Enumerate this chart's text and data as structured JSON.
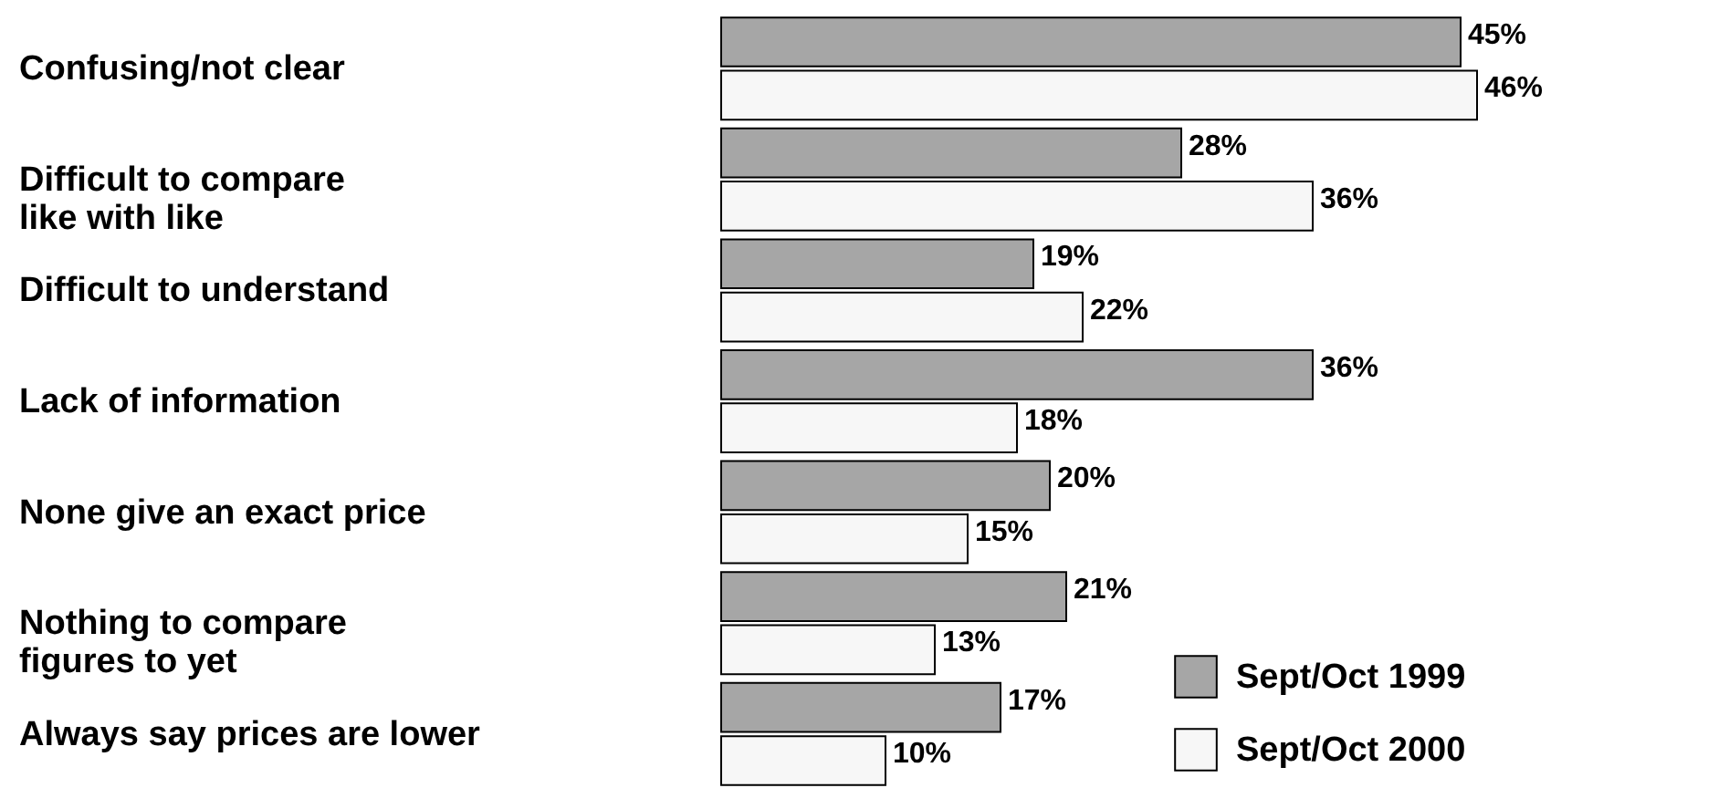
{
  "chart_data": {
    "type": "bar",
    "orientation": "horizontal",
    "categories": [
      "Confusing/not clear",
      "Difficult to compare\nlike with like",
      "Difficult to understand",
      "Lack of information",
      "None give an exact price",
      "Nothing to compare\nfigures to yet",
      "Always say prices are lower"
    ],
    "series": [
      {
        "name": "Sept/Oct 1999",
        "color": "#a6a6a6",
        "values": [
          45,
          28,
          19,
          36,
          20,
          21,
          17
        ],
        "value_labels": [
          "45%",
          "28%",
          "19%",
          "36%",
          "20%",
          "21%",
          "17%"
        ]
      },
      {
        "name": "Sept/Oct 2000",
        "color": "#f7f7f7",
        "values": [
          46,
          36,
          22,
          18,
          15,
          13,
          10
        ],
        "value_labels": [
          "46%",
          "36%",
          "22%",
          "18%",
          "15%",
          "13%",
          "10%"
        ]
      }
    ],
    "legend": "bottom right",
    "grid": false
  }
}
